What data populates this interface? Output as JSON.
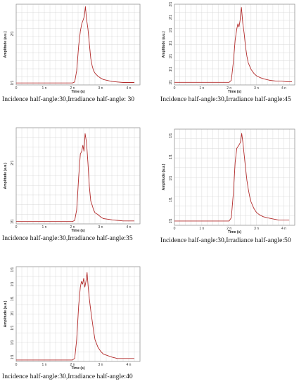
{
  "colors": {
    "trace": "#b22a2a",
    "grid": "#d9d9d9",
    "frame": "#9a9a9a",
    "background": "#ffffff"
  },
  "chart_data": [
    {
      "type": "line",
      "caption": "Incidence half-angle:30,Irradiance half-angle: 30",
      "xlabel": "Time (s)",
      "ylabel": "Amplitude (a.u.)",
      "x_ticks": [
        "0",
        "1 n",
        "2 n",
        "3 n",
        "4 n"
      ],
      "y_ticks": [
        "1f1",
        "2f1"
      ],
      "y_tick_values": [
        1,
        2
      ],
      "xlim": [
        0,
        4.4
      ],
      "ylim": [
        0.96,
        2.6
      ],
      "grid": true,
      "series": [
        {
          "x": [
            0,
            2.0,
            2.08,
            2.15,
            2.22,
            2.28,
            2.33,
            2.38,
            2.42,
            2.46,
            2.5,
            2.55,
            2.6,
            2.65,
            2.7,
            2.75,
            2.8,
            2.9,
            3.0,
            3.1,
            3.25,
            3.4,
            3.6,
            3.8,
            4.0,
            4.2
          ],
          "y": [
            1.0,
            1.0,
            1.02,
            1.25,
            1.75,
            2.05,
            2.2,
            2.28,
            2.35,
            2.55,
            2.3,
            2.1,
            1.8,
            1.5,
            1.35,
            1.25,
            1.2,
            1.14,
            1.1,
            1.07,
            1.05,
            1.03,
            1.02,
            1.01,
            1.01,
            1.01
          ]
        }
      ]
    },
    {
      "type": "line",
      "caption": "Incidence half-angle:30,Irradiance half-angle:45",
      "xlabel": "Time (s)",
      "ylabel": "Amplitude (a.u.)",
      "x_ticks": [
        "0",
        "1 n",
        "2 n",
        "3 n",
        "4 n"
      ],
      "y_ticks": [
        "1f1",
        "1f1",
        "1f1",
        "1f1",
        "1f1",
        "2f1",
        "2f1"
      ],
      "y_tick_values": [
        1.0,
        1.2,
        1.4,
        1.6,
        1.8,
        2.0,
        2.2
      ],
      "xlim": [
        0,
        4.4
      ],
      "ylim": [
        0.96,
        2.2
      ],
      "grid": true,
      "series": [
        {
          "x": [
            0,
            2.0,
            2.08,
            2.15,
            2.22,
            2.28,
            2.32,
            2.36,
            2.4,
            2.45,
            2.5,
            2.55,
            2.6,
            2.65,
            2.7,
            2.8,
            2.9,
            3.0,
            3.15,
            3.3,
            3.5,
            3.7,
            3.9,
            4.1,
            4.3
          ],
          "y": [
            1.0,
            1.0,
            1.03,
            1.3,
            1.65,
            1.82,
            1.9,
            1.85,
            1.95,
            2.15,
            1.9,
            1.75,
            1.55,
            1.4,
            1.3,
            1.2,
            1.14,
            1.1,
            1.07,
            1.05,
            1.03,
            1.02,
            1.02,
            1.01,
            1.01
          ]
        }
      ]
    },
    {
      "type": "line",
      "caption": "Incidence half-angle:30,Irradiance half-angle:35",
      "xlabel": "Time (s)",
      "ylabel": "Amplitude (a.u.)",
      "x_ticks": [
        "0",
        "1 n",
        "2 n",
        "3 n",
        "4 n"
      ],
      "y_ticks": [
        "1f1",
        "2f1"
      ],
      "y_tick_values": [
        1,
        2
      ],
      "xlim": [
        0,
        4.4
      ],
      "ylim": [
        0.96,
        2.6
      ],
      "grid": true,
      "series": [
        {
          "x": [
            0,
            2.0,
            2.08,
            2.15,
            2.22,
            2.28,
            2.33,
            2.37,
            2.41,
            2.45,
            2.5,
            2.55,
            2.6,
            2.65,
            2.7,
            2.75,
            2.8,
            2.9,
            3.0,
            3.1,
            3.25,
            3.4,
            3.6,
            3.8,
            4.0,
            4.2
          ],
          "y": [
            1.0,
            1.0,
            1.02,
            1.2,
            1.75,
            2.15,
            2.2,
            2.3,
            2.2,
            2.5,
            2.35,
            2.0,
            1.6,
            1.35,
            1.28,
            1.2,
            1.15,
            1.12,
            1.08,
            1.05,
            1.04,
            1.03,
            1.02,
            1.01,
            1.01,
            1.01
          ]
        }
      ]
    },
    {
      "type": "line",
      "caption": "Incidence half-angle:30,Irradiance half-angle:50",
      "xlabel": "Time (s)",
      "ylabel": "Amplitude (a.u.)",
      "x_ticks": [
        "0",
        "1 n",
        "2 n",
        "3 n",
        "4 n"
      ],
      "y_ticks": [
        "1f1",
        "1f1",
        "1f1",
        "1f1",
        "1f1"
      ],
      "y_tick_values": [
        1.0,
        1.2,
        1.4,
        1.6,
        1.8
      ],
      "xlim": [
        0,
        4.4
      ],
      "ylim": [
        0.96,
        1.86
      ],
      "grid": true,
      "series": [
        {
          "x": [
            0,
            2.0,
            2.08,
            2.15,
            2.22,
            2.28,
            2.33,
            2.38,
            2.42,
            2.46,
            2.5,
            2.55,
            2.6,
            2.65,
            2.7,
            2.75,
            2.8,
            2.9,
            3.0,
            3.1,
            3.25,
            3.4,
            3.6,
            3.8,
            4.0,
            4.2
          ],
          "y": [
            1.0,
            1.0,
            1.03,
            1.25,
            1.55,
            1.68,
            1.7,
            1.72,
            1.74,
            1.82,
            1.74,
            1.62,
            1.5,
            1.38,
            1.3,
            1.23,
            1.18,
            1.12,
            1.08,
            1.06,
            1.04,
            1.03,
            1.02,
            1.01,
            1.01,
            1.01
          ]
        }
      ]
    },
    {
      "type": "line",
      "caption": "Incidence half-angle:30,Irradiance half-angle:40",
      "xlabel": "Time (s)",
      "ylabel": "Amplitude (a.u.)",
      "x_ticks": [
        "0",
        "1 n",
        "2 n",
        "3 n",
        "4 n"
      ],
      "y_ticks": [
        "1f1",
        "1f1",
        "1f1",
        "1f1",
        "1f1",
        "1f1",
        "1f1"
      ],
      "y_tick_values": [
        1.1,
        1.2,
        1.3,
        1.4,
        1.5,
        1.6,
        1.7
      ],
      "xlim": [
        0,
        4.4
      ],
      "ylim": [
        1.07,
        1.72
      ],
      "grid": true,
      "series": [
        {
          "x": [
            0,
            2.0,
            2.08,
            2.15,
            2.22,
            2.28,
            2.32,
            2.36,
            2.4,
            2.44,
            2.48,
            2.52,
            2.56,
            2.6,
            2.65,
            2.7,
            2.75,
            2.8,
            2.9,
            3.0,
            3.1,
            3.25,
            3.4,
            3.6,
            3.8,
            4.0,
            4.2
          ],
          "y": [
            1.08,
            1.08,
            1.09,
            1.22,
            1.45,
            1.58,
            1.62,
            1.6,
            1.64,
            1.58,
            1.62,
            1.68,
            1.58,
            1.5,
            1.42,
            1.35,
            1.28,
            1.22,
            1.17,
            1.14,
            1.12,
            1.11,
            1.1,
            1.09,
            1.09,
            1.09,
            1.09
          ]
        }
      ]
    }
  ]
}
